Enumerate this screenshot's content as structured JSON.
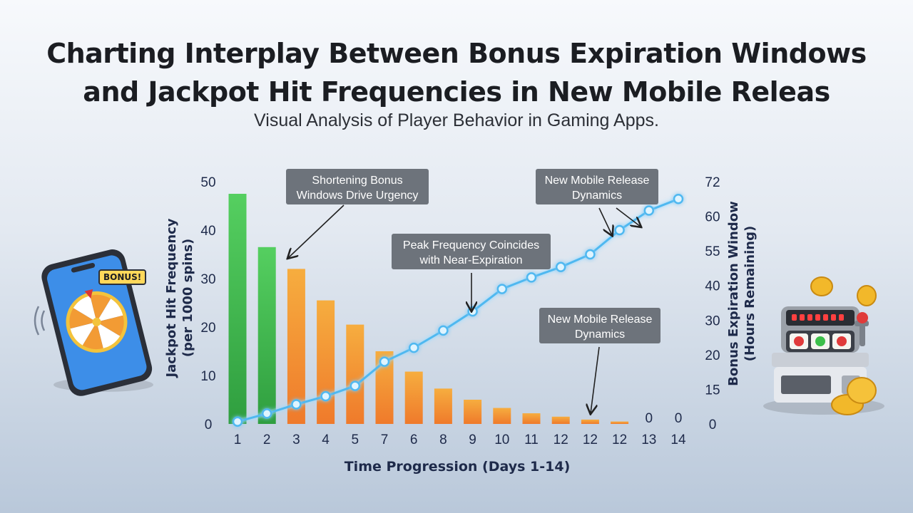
{
  "title_line1": "Charting Interplay Between Bonus Expiration Windows",
  "title_line2": "and Jackpot Hit Frequencies in New Mobile Releas",
  "subtitle": "Visual Analysis of Player Behavior in Gaming Apps.",
  "phone_badge": "BONUS!",
  "annotations": [
    "Shortening Bonus Windows Drive Urgency",
    "New Mobile Release Dynamics",
    "Peak Frequency Coincides with Near-Expiration",
    "New Mobile Release Dynamics"
  ],
  "colors": {
    "bar_green": "#4cc658",
    "bar_orange": "#f5a53a",
    "line": "#4fb8f0",
    "axis_text": "#1e2a4a",
    "callout_bg": "#6d737b"
  },
  "chart_data": {
    "type": "bar",
    "xlabel": "Time Progression (Days 1-14)",
    "ylabel_left_line1": "Jackpot Hit Frequency",
    "ylabel_left_line2": "(per 1000 spins)",
    "ylabel_right_line1": "Bonus Expiration Window",
    "ylabel_right_line2": "(Hours Remaining)",
    "categories": [
      "1",
      "2",
      "3",
      "4",
      "5",
      "7",
      "6",
      "8",
      "9",
      "10",
      "11",
      "12",
      "12",
      "12",
      "13",
      "14"
    ],
    "left_ticks": [
      "0",
      "10",
      "20",
      "30",
      "40",
      "50"
    ],
    "right_ticks": [
      "0",
      "15",
      "20",
      "30",
      "40",
      "55",
      "60",
      "72"
    ],
    "ylim_left": [
      0,
      50
    ],
    "series": [
      {
        "name": "Jackpot Hit Frequency",
        "type": "bar",
        "axis": "left",
        "values": [
          47.5,
          36.5,
          32,
          25.5,
          20.5,
          15,
          10.8,
          7.3,
          5,
          3.3,
          2.2,
          1.5,
          0.9,
          0.5,
          0,
          0
        ],
        "bar_colors": [
          "green",
          "green",
          "orange",
          "orange",
          "orange",
          "orange",
          "orange",
          "orange",
          "orange",
          "orange",
          "orange",
          "orange",
          "orange",
          "orange",
          "orange",
          "orange"
        ]
      },
      {
        "name": "Bonus Expiration Window",
        "type": "line",
        "axis": "right",
        "values": [
          1,
          4.5,
          8.5,
          12,
          15.5,
          19,
          22,
          27,
          32.5,
          39,
          43.5,
          48,
          53.5,
          58,
          62,
          66
        ]
      }
    ],
    "bar_data_labels": {
      "14": "0",
      "15": "0"
    }
  }
}
